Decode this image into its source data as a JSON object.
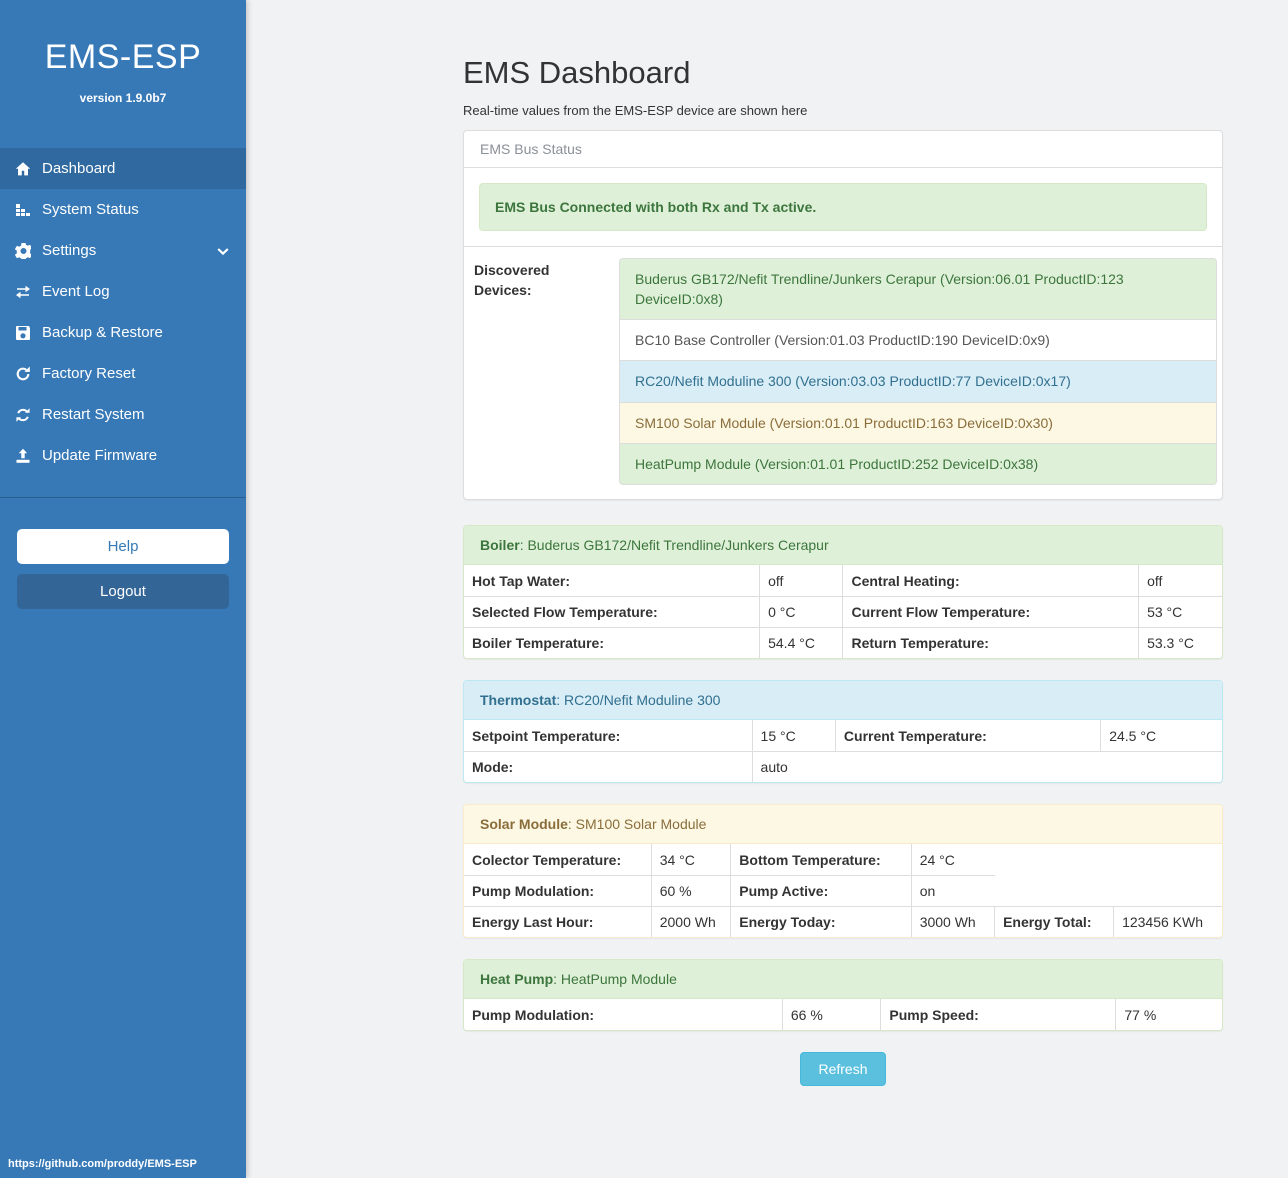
{
  "sidebar": {
    "title": "EMS-ESP",
    "version": "version 1.9.0b7",
    "nav": [
      {
        "label": "Dashboard",
        "icon": "home-icon",
        "active": true
      },
      {
        "label": "System Status",
        "icon": "system-status-icon",
        "active": false
      },
      {
        "label": "Settings",
        "icon": "gear-icon",
        "active": false,
        "chevron": true
      },
      {
        "label": "Event Log",
        "icon": "exchange-icon",
        "active": false
      },
      {
        "label": "Backup & Restore",
        "icon": "save-icon",
        "active": false
      },
      {
        "label": "Factory Reset",
        "icon": "rotate-right-icon",
        "active": false
      },
      {
        "label": "Restart System",
        "icon": "sync-icon",
        "active": false
      },
      {
        "label": "Update Firmware",
        "icon": "upload-icon",
        "active": false
      }
    ],
    "help_label": "Help",
    "logout_label": "Logout",
    "footer_url": "https://github.com/proddy/EMS-ESP"
  },
  "main": {
    "title": "EMS Dashboard",
    "subtitle": "Real-time values from the EMS-ESP device are shown here",
    "bus_panel": {
      "heading": "EMS Bus Status",
      "alert": "EMS Bus Connected with both Rx and Tx active.",
      "devices_label": "Discovered Devices:",
      "devices": [
        {
          "text": "Buderus GB172/Nefit Trendline/Junkers Cerapur (Version:06.01 ProductID:123 DeviceID:0x8)",
          "variant": "success"
        },
        {
          "text": "BC10 Base Controller (Version:01.03 ProductID:190 DeviceID:0x9)",
          "variant": "default"
        },
        {
          "text": "RC20/Nefit Moduline 300 (Version:03.03 ProductID:77 DeviceID:0x17)",
          "variant": "info"
        },
        {
          "text": "SM100 Solar Module (Version:01.01 ProductID:163 DeviceID:0x30)",
          "variant": "warning"
        },
        {
          "text": "HeatPump Module (Version:01.01 ProductID:252 DeviceID:0x38)",
          "variant": "success"
        }
      ]
    },
    "device_panels": [
      {
        "name": "Boiler",
        "device": "Buderus GB172/Nefit Trendline/Junkers Cerapur",
        "variant": "success",
        "rows": [
          [
            {
              "label": "Hot Tap Water:",
              "value": "off"
            },
            {
              "label": "Central Heating:",
              "value": "off"
            }
          ],
          [
            {
              "label": "Selected Flow Temperature:",
              "value": "0 °C"
            },
            {
              "label": "Current Flow Temperature:",
              "value": "53 °C"
            }
          ],
          [
            {
              "label": "Boiler Temperature:",
              "value": "54.4 °C"
            },
            {
              "label": "Return Temperature:",
              "value": "53.3 °C"
            }
          ]
        ]
      },
      {
        "name": "Thermostat",
        "device": "RC20/Nefit Moduline 300",
        "variant": "info",
        "rows": [
          [
            {
              "label": "Setpoint Temperature:",
              "value": "15 °C"
            },
            {
              "label": "Current Temperature:",
              "value": "24.5 °C"
            }
          ],
          [
            {
              "label": "Mode:",
              "value": "auto",
              "vspan": 3
            }
          ]
        ]
      },
      {
        "name": "Solar Module",
        "device": "SM100 Solar Module",
        "variant": "warning",
        "rows": [
          [
            {
              "label": "Colector Temperature:",
              "value": "34 °C"
            },
            {
              "label": "Bottom Temperature:",
              "value": "24 °C"
            }
          ],
          [
            {
              "label": "Pump Modulation:",
              "value": "60 %"
            },
            {
              "label": "Pump Active:",
              "value": "on"
            }
          ],
          [
            {
              "label": "Energy Last Hour:",
              "value": "2000 Wh"
            },
            {
              "label": "Energy Today:",
              "value": "3000 Wh"
            },
            {
              "label": "Energy Total:",
              "value": "123456 KWh"
            }
          ]
        ]
      },
      {
        "name": "Heat Pump",
        "device": "HeatPump Module",
        "variant": "success",
        "rows": [
          [
            {
              "label": "Pump Modulation:",
              "value": "66 %"
            },
            {
              "label": "Pump Speed:",
              "value": "77 %"
            }
          ]
        ]
      }
    ],
    "refresh_label": "Refresh"
  },
  "colors": {
    "sidebar_bg": "#3779b7",
    "sidebar_active": "#2f69a0",
    "logout_bg": "#346597",
    "accent_blue": "#337ab7",
    "body_bg": "#f0f2f4",
    "success": {
      "bg": "#dff0d8",
      "border": "#d6e9c6",
      "text": "#3c763d"
    },
    "info": {
      "bg": "#d9edf7",
      "border": "#bce8f1",
      "text": "#31708f"
    },
    "warning": {
      "bg": "#fcf8e3",
      "border": "#faebcc",
      "text": "#8a6d3b"
    },
    "refresh_button_bg": "#5bc0de"
  }
}
